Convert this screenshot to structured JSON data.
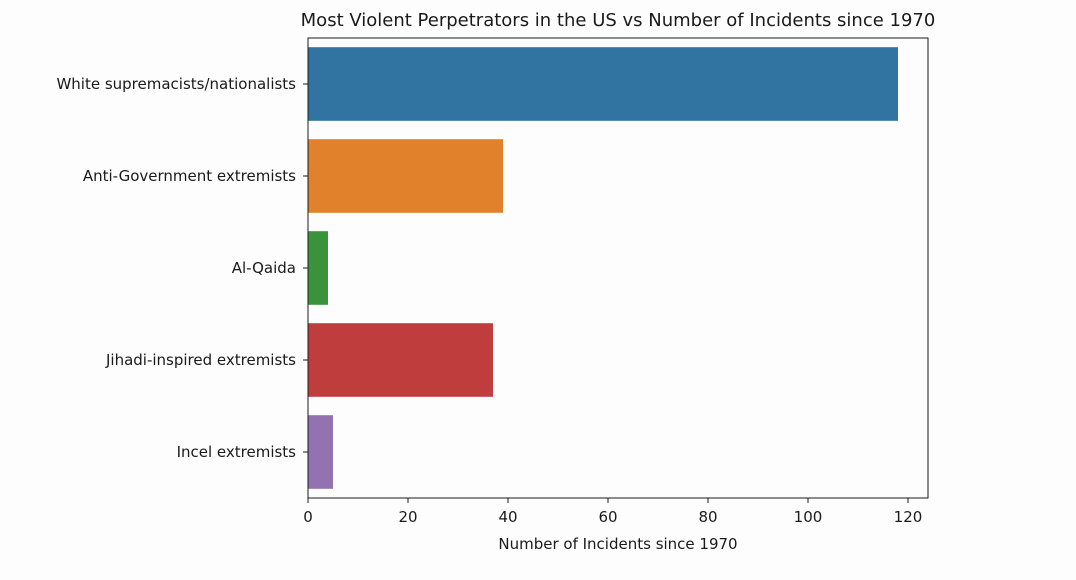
{
  "chart_data": {
    "type": "bar",
    "orientation": "horizontal",
    "title": "Most Violent Perpetrators in the US vs Number of Incidents since  1970",
    "xlabel": "Number of Incidents since 1970",
    "ylabel": "",
    "xlim": [
      0,
      124
    ],
    "xticks": [
      0,
      20,
      40,
      60,
      80,
      100,
      120
    ],
    "grid": false,
    "legend": "none",
    "categories": [
      "White supremacists/nationalists",
      "Anti-Government extremists",
      "Al-Qaida",
      "Jihadi-inspired extremists",
      "Incel extremists"
    ],
    "values": [
      118,
      39,
      4,
      37,
      5
    ],
    "colors": [
      "#3274a1",
      "#e1812c",
      "#3a923a",
      "#c03d3e",
      "#9372b2"
    ]
  }
}
